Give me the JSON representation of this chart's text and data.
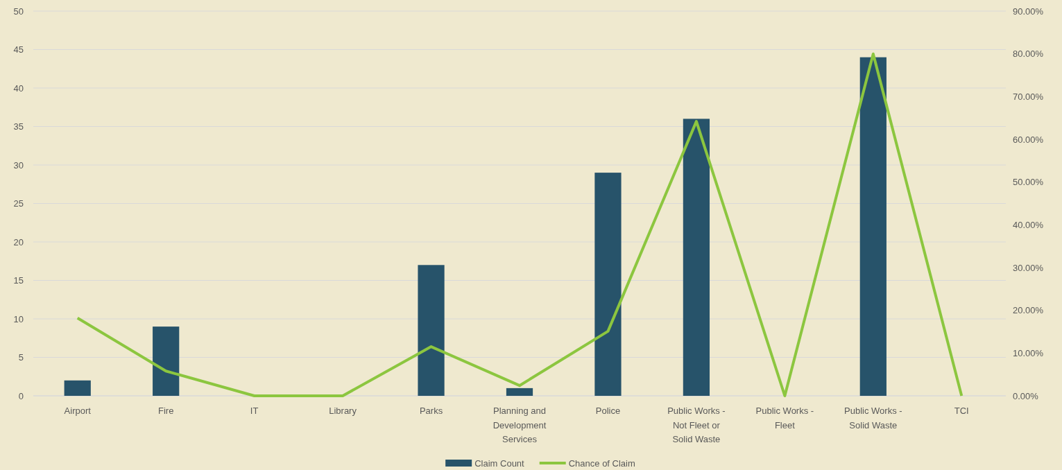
{
  "chart_data": {
    "type": "bar",
    "categories": [
      "Airport",
      "Fire",
      "IT",
      "Library",
      "Parks",
      "Planning and Development Services",
      "Police",
      "Public Works - Not Fleet or Solid Waste",
      "Public Works - Fleet",
      "Public Works - Solid Waste",
      "TCI"
    ],
    "series": [
      {
        "name": "Claim Count",
        "color": "#27536a",
        "values": [
          2,
          9,
          0,
          0,
          17,
          1,
          29,
          36,
          0,
          44,
          0
        ]
      },
      {
        "name": "Chance of Claim",
        "type": "line",
        "axis": "y2",
        "color": "#8cc63f",
        "values": [
          18.2,
          5.8,
          0,
          0,
          11.5,
          2.4,
          15.1,
          64.2,
          0,
          80,
          0
        ]
      }
    ],
    "ylim": [
      0,
      50
    ],
    "yticks": [
      0,
      5,
      10,
      15,
      20,
      25,
      30,
      35,
      40,
      45,
      50
    ],
    "y2lim": [
      0,
      90
    ],
    "y2ticks": [
      {
        "value": 0,
        "label": "0.00%"
      },
      {
        "value": 10,
        "label": "10.00%"
      },
      {
        "value": 20,
        "label": "20.00%"
      },
      {
        "value": 30,
        "label": "30.00%"
      },
      {
        "value": 40,
        "label": "40.00%"
      },
      {
        "value": 50,
        "label": "50.00%"
      },
      {
        "value": 60,
        "label": "60.00%"
      },
      {
        "value": 70,
        "label": "70.00%"
      },
      {
        "value": 80,
        "label": "80.00%"
      },
      {
        "value": 90,
        "label": "90.00%"
      }
    ],
    "grid": "y",
    "legend": "bottom",
    "marker": "none",
    "line_style": "solid"
  }
}
